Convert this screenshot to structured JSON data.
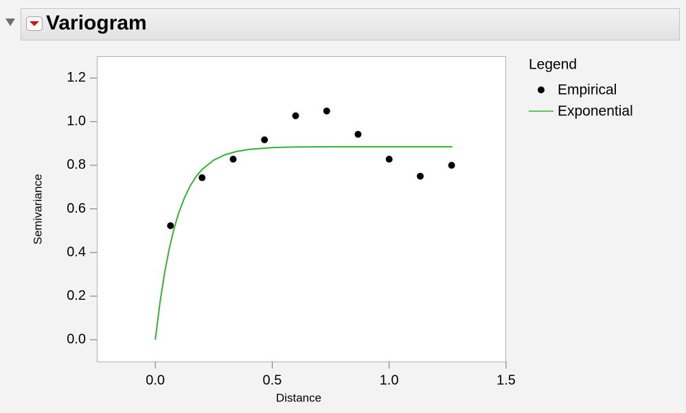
{
  "chart_data": {
    "type": "scatter",
    "title": "Variogram",
    "x_label": "Distance",
    "y_label": "Semivariance",
    "legend_title": "Legend",
    "xlim": [
      -0.25,
      1.5
    ],
    "ylim": [
      -0.1,
      1.3
    ],
    "xticks": [
      {
        "value": 0,
        "label": "0.0"
      },
      0.5,
      {
        "value": 1,
        "label": "1.0"
      },
      1.5
    ],
    "yticks": [
      {
        "value": 0,
        "label": "0.0"
      },
      0.2,
      0.4,
      0.6,
      0.8,
      {
        "value": 1,
        "label": "1.0"
      },
      1.2
    ],
    "legend_position": "outside-right",
    "series": [
      {
        "name": "Empirical",
        "type": "scatter",
        "color": "#000000",
        "x": [
          0.065,
          0.2,
          0.333,
          0.467,
          0.6,
          0.733,
          0.867,
          1.0,
          1.133,
          1.267
        ],
        "values": [
          0.523,
          0.743,
          0.828,
          0.917,
          1.027,
          1.049,
          0.942,
          0.828,
          0.75,
          0.8
        ]
      },
      {
        "name": "Exponential",
        "type": "line",
        "color": "#2db52d",
        "x": [
          0,
          0.02,
          0.04,
          0.06,
          0.08,
          0.1,
          0.125,
          0.15,
          0.175,
          0.2,
          0.25,
          0.3,
          0.35,
          0.4,
          0.5,
          0.6,
          0.8,
          1.0,
          1.27
        ],
        "values": [
          0,
          0.17,
          0.308,
          0.419,
          0.509,
          0.581,
          0.652,
          0.707,
          0.749,
          0.781,
          0.824,
          0.849,
          0.864,
          0.873,
          0.881,
          0.884,
          0.885,
          0.885,
          0.885
        ]
      }
    ]
  }
}
